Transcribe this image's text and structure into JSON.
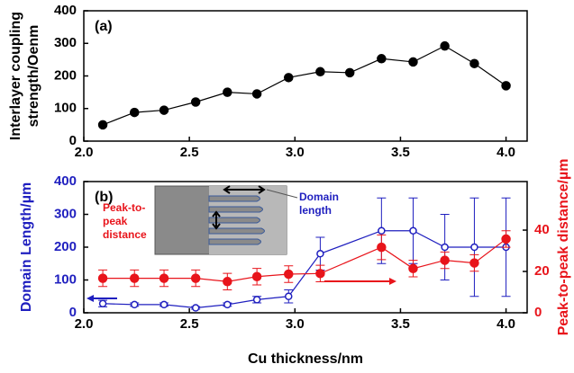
{
  "chart_data": [
    {
      "type": "line",
      "label": "(a)",
      "y_label": [
        "Interlayer coupling",
        "strength/Oenm"
      ],
      "x": [
        2.09,
        2.24,
        2.38,
        2.53,
        2.68,
        2.82,
        2.97,
        3.12,
        3.26,
        3.41,
        3.56,
        3.71,
        3.85,
        4.0
      ],
      "series": [
        {
          "color": "#000000",
          "values": [
            50,
            88,
            95,
            120,
            150,
            145,
            195,
            213,
            210,
            253,
            243,
            292,
            238,
            170
          ]
        }
      ],
      "xlim": [
        2.0,
        4.1
      ],
      "xticks": [
        {
          "value": 2,
          "label": "2.0"
        },
        2.5,
        {
          "value": 3,
          "label": "3.0"
        },
        3.5,
        {
          "value": 4,
          "label": "4.0"
        }
      ],
      "ylim": [
        0,
        400
      ],
      "yticks": [
        0,
        100,
        200,
        300,
        400
      ]
    },
    {
      "type": "errorbar",
      "label": "(b)",
      "x_label": "Cu thickness/nm",
      "y_label": "Domain Length/µm",
      "y2_label": "Peak-to-peak distance/µm",
      "annotations": {
        "peak": [
          "Peak-to-",
          "peak",
          "distance"
        ],
        "domain": [
          "Domain",
          "length"
        ]
      },
      "series": [
        {
          "color": "#1f1fbf",
          "marker": "open",
          "x": [
            2.09,
            2.24,
            2.38,
            2.53,
            2.68,
            2.82,
            2.97,
            3.12,
            3.41,
            3.56,
            3.71,
            3.85,
            4.0
          ],
          "values": [
            28,
            25,
            25,
            15,
            25,
            40,
            50,
            180,
            250,
            250,
            200,
            200,
            200
          ],
          "errors": [
            10,
            5,
            5,
            4,
            5,
            10,
            20,
            50,
            100,
            100,
            100,
            150,
            150
          ]
        },
        {
          "color": "#e8141b",
          "marker": "filled",
          "axis": "y2",
          "x": [
            2.09,
            2.24,
            2.38,
            2.53,
            2.68,
            2.82,
            2.97,
            3.12,
            3.41,
            3.56,
            3.71,
            3.85,
            4.0
          ],
          "values": [
            16.7,
            16.7,
            16.7,
            16.7,
            15.1,
            17.5,
            18.7,
            19,
            31.7,
            21.4,
            25.4,
            24.1,
            35.7
          ],
          "errors": [
            4,
            4,
            4,
            4,
            4,
            4,
            4,
            4,
            6,
            4,
            4,
            4,
            4
          ]
        }
      ],
      "xlim": [
        2.0,
        4.1
      ],
      "xticks": [
        {
          "value": 2,
          "label": "2.0"
        },
        2.5,
        {
          "value": 3,
          "label": "3.0"
        },
        3.5,
        {
          "value": 4,
          "label": "4.0"
        }
      ],
      "ylim": [
        0,
        400
      ],
      "yticks": [
        0,
        100,
        200,
        300,
        400
      ],
      "y2lim": [
        0,
        63.5
      ],
      "y2ticks": [
        0,
        20,
        40
      ]
    }
  ]
}
